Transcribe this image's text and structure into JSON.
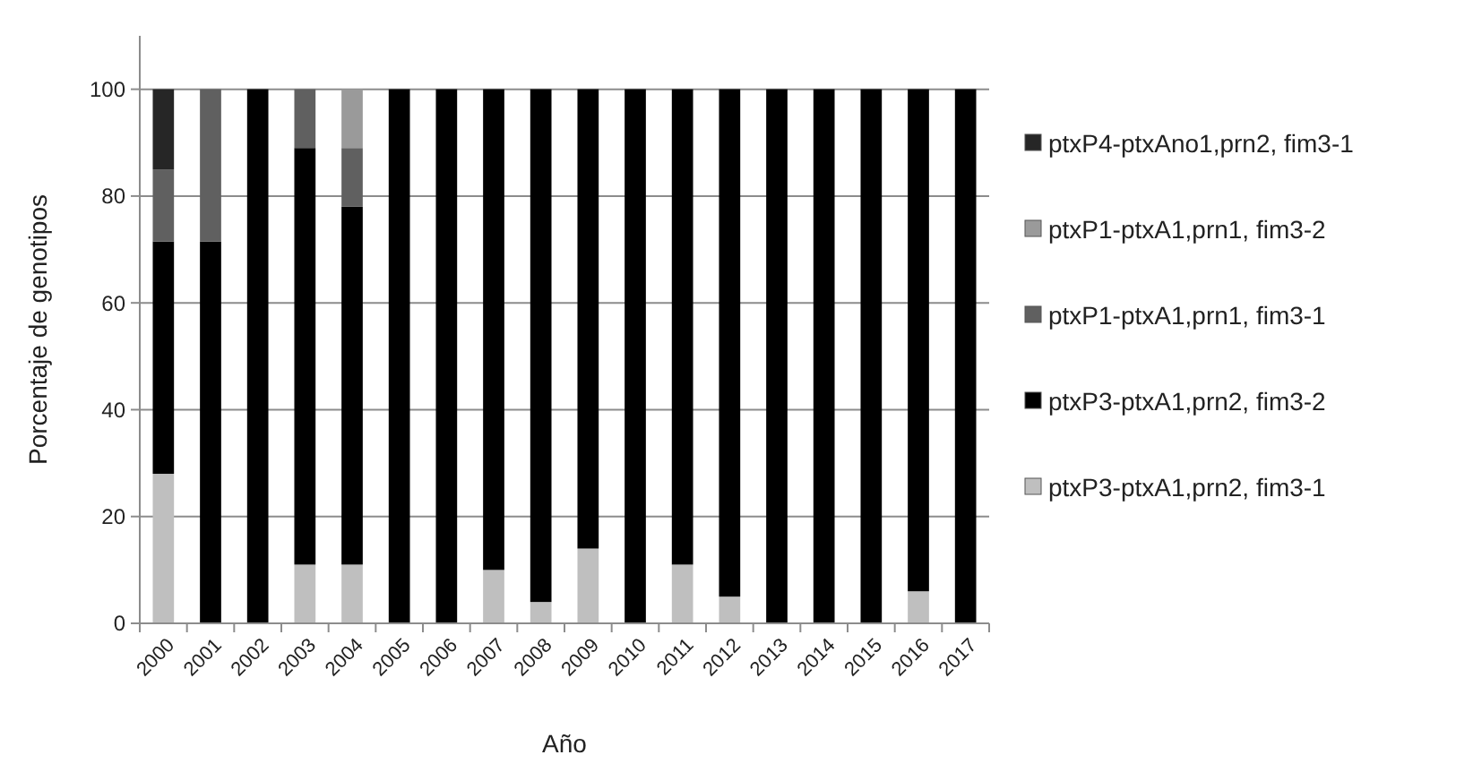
{
  "chart_data": {
    "type": "bar",
    "stacked": true,
    "xlabel": "Año",
    "ylabel": "Porcentaje de genotipos",
    "categories": [
      "2000",
      "2001",
      "2002",
      "2003",
      "2004",
      "2005",
      "2006",
      "2007",
      "2008",
      "2009",
      "2010",
      "2011",
      "2012",
      "2013",
      "2014",
      "2015",
      "2016",
      "2017"
    ],
    "series": [
      {
        "name": "ptxP3-ptxA1,prn2, fim3-1",
        "color": "#bfbfbf",
        "values": [
          28,
          0,
          0,
          11,
          11,
          0,
          0,
          10,
          4,
          14,
          0,
          11,
          5,
          0,
          0,
          0,
          6,
          0
        ]
      },
      {
        "name": "ptxP3-ptxA1,prn2, fim3-2",
        "color": "#000000",
        "values": [
          43.5,
          71.5,
          100,
          78,
          67,
          100,
          100,
          90,
          96,
          86,
          100,
          89,
          95,
          100,
          100,
          100,
          94,
          100
        ]
      },
      {
        "name": "ptxP1-ptxA1,prn1, fim3-1",
        "color": "#606060",
        "values": [
          13.5,
          28.5,
          0,
          11,
          11,
          0,
          0,
          0,
          0,
          0,
          0,
          0,
          0,
          0,
          0,
          0,
          0,
          0
        ]
      },
      {
        "name": "ptxP1-ptxA1,prn1, fim3-2",
        "color": "#9a9a9a",
        "values": [
          0,
          0,
          0,
          0,
          11,
          0,
          0,
          0,
          0,
          0,
          0,
          0,
          0,
          0,
          0,
          0,
          0,
          0
        ]
      },
      {
        "name": "ptxP4-ptxAno1,prn2, fim3-1",
        "color": "#262626",
        "values": [
          15,
          0,
          0,
          0,
          0,
          0,
          0,
          0,
          0,
          0,
          0,
          0,
          0,
          0,
          0,
          0,
          0,
          0
        ]
      }
    ],
    "ylim": [
      0,
      110
    ],
    "yticks": [
      0,
      20,
      40,
      60,
      80,
      100
    ],
    "grid": "y",
    "legend": "right"
  }
}
